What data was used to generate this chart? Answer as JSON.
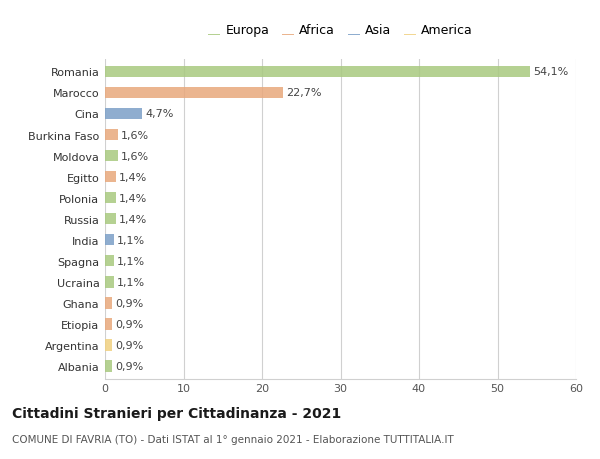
{
  "countries": [
    "Romania",
    "Marocco",
    "Cina",
    "Burkina Faso",
    "Moldova",
    "Egitto",
    "Polonia",
    "Russia",
    "India",
    "Spagna",
    "Ucraina",
    "Ghana",
    "Etiopia",
    "Argentina",
    "Albania"
  ],
  "values": [
    54.1,
    22.7,
    4.7,
    1.6,
    1.6,
    1.4,
    1.4,
    1.4,
    1.1,
    1.1,
    1.1,
    0.9,
    0.9,
    0.9,
    0.9
  ],
  "labels": [
    "54,1%",
    "22,7%",
    "4,7%",
    "1,6%",
    "1,6%",
    "1,4%",
    "1,4%",
    "1,4%",
    "1,1%",
    "1,1%",
    "1,1%",
    "0,9%",
    "0,9%",
    "0,9%",
    "0,9%"
  ],
  "continents": [
    "Europa",
    "Africa",
    "Asia",
    "Africa",
    "Europa",
    "Africa",
    "Europa",
    "Europa",
    "Asia",
    "Europa",
    "Europa",
    "Africa",
    "Africa",
    "America",
    "Europa"
  ],
  "continent_colors": {
    "Europa": "#a8c97f",
    "Africa": "#e8a87c",
    "Asia": "#7b9fc7",
    "America": "#f0d080"
  },
  "legend_order": [
    "Europa",
    "Africa",
    "Asia",
    "America"
  ],
  "title": "Cittadini Stranieri per Cittadinanza - 2021",
  "subtitle": "COMUNE DI FAVRIA (TO) - Dati ISTAT al 1° gennaio 2021 - Elaborazione TUTTITALIA.IT",
  "xlim": [
    0,
    60
  ],
  "xticks": [
    0,
    10,
    20,
    30,
    40,
    50,
    60
  ],
  "background_color": "#ffffff",
  "grid_color": "#d0d0d0",
  "bar_height": 0.55,
  "label_fontsize": 8.0,
  "tick_fontsize": 8.0,
  "legend_fontsize": 9.0,
  "title_fontsize": 10.0,
  "subtitle_fontsize": 7.5
}
